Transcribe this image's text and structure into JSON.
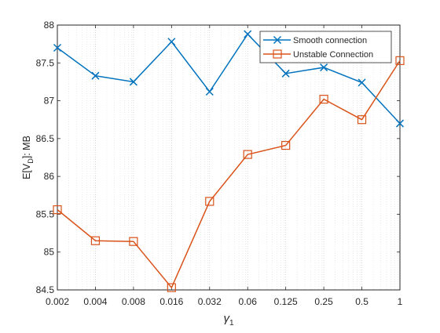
{
  "chart_data": {
    "type": "line",
    "xlabel_symbol": "γ",
    "xlabel_subscript": "1",
    "ylabel_main": "E[V",
    "ylabel_subscript": "D",
    "ylabel_suffix": "]: MB",
    "x": [
      "0.002",
      "0.004",
      "0.008",
      "0.016",
      "0.032",
      "0.06",
      "0.125",
      "0.25",
      "0.5",
      "1"
    ],
    "yticks": [
      "84.5",
      "85",
      "85.5",
      "86",
      "86.5",
      "87",
      "87.5",
      "88"
    ],
    "ylim": [
      84.5,
      88
    ],
    "grid": "vertical dotted",
    "legend_position": "top-right",
    "series": [
      {
        "name": "Smooth connection",
        "marker": "x",
        "color": "#0072BD",
        "values": [
          87.7,
          87.33,
          87.25,
          87.78,
          87.12,
          87.88,
          87.36,
          87.44,
          87.24,
          86.7
        ]
      },
      {
        "name": "Unstable Connection",
        "marker": "square",
        "color": "#D95319",
        "values": [
          85.56,
          85.15,
          85.14,
          84.53,
          85.67,
          86.29,
          86.41,
          87.02,
          86.75,
          87.53
        ]
      }
    ]
  }
}
